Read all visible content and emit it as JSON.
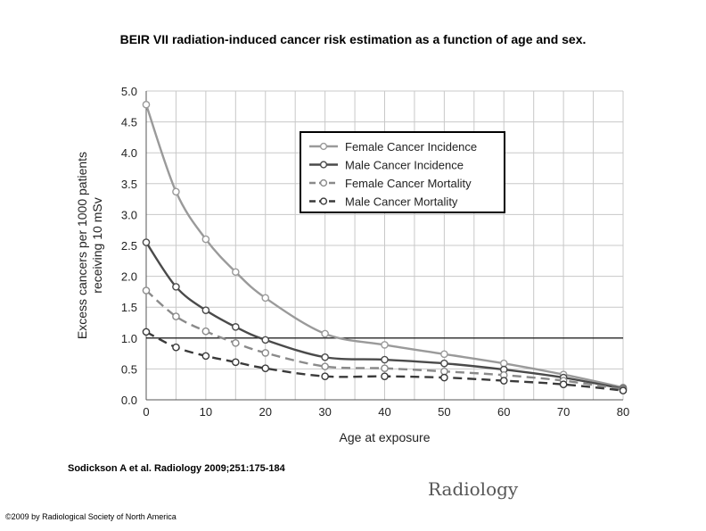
{
  "title": "BEIR VII radiation-induced cancer risk estimation as a function of age and sex.",
  "citation": "Sodickson A et al. Radiology 2009;251:175-184",
  "logo": "Radiology",
  "copyright": "©2009 by Radiological Society of North America",
  "chart_data": {
    "type": "line",
    "xlabel": "Age at exposure",
    "ylabel_lines": [
      "Excess cancers per 1000 patients",
      "receiving 10 mSv"
    ],
    "x_ticks": [
      0,
      10,
      20,
      30,
      40,
      50,
      60,
      70,
      80
    ],
    "y_ticks": [
      "0.0",
      "0.5",
      "1.0",
      "1.5",
      "2.0",
      "2.5",
      "3.0",
      "3.5",
      "4.0",
      "4.5",
      "5.0"
    ],
    "xlim": [
      0,
      80
    ],
    "ylim": [
      0,
      5
    ],
    "grid": true,
    "legend_position": "top-right",
    "reference_line_y": 1.0,
    "series": [
      {
        "name": "Female Cancer Incidence",
        "style": "solid",
        "color": "#9a9a9a",
        "x": [
          0,
          5,
          10,
          15,
          20,
          30,
          40,
          50,
          60,
          70,
          80
        ],
        "y": [
          4.78,
          3.37,
          2.6,
          2.07,
          1.65,
          1.07,
          0.89,
          0.74,
          0.59,
          0.41,
          0.2
        ]
      },
      {
        "name": "Male Cancer Incidence",
        "style": "solid",
        "color": "#4a4a4a",
        "x": [
          0,
          5,
          10,
          15,
          20,
          30,
          40,
          50,
          60,
          70,
          80
        ],
        "y": [
          2.55,
          1.83,
          1.45,
          1.18,
          0.97,
          0.69,
          0.65,
          0.59,
          0.49,
          0.36,
          0.18
        ]
      },
      {
        "name": "Female Cancer Mortality",
        "style": "dashed",
        "color": "#8a8a8a",
        "x": [
          0,
          5,
          10,
          15,
          20,
          30,
          40,
          50,
          60,
          70,
          80
        ],
        "y": [
          1.77,
          1.35,
          1.11,
          0.92,
          0.76,
          0.54,
          0.51,
          0.46,
          0.4,
          0.31,
          0.17
        ]
      },
      {
        "name": "Male Cancer Mortality",
        "style": "dashed",
        "color": "#3a3a3a",
        "x": [
          0,
          5,
          10,
          15,
          20,
          30,
          40,
          50,
          60,
          70,
          80
        ],
        "y": [
          1.1,
          0.85,
          0.71,
          0.61,
          0.51,
          0.38,
          0.38,
          0.36,
          0.31,
          0.25,
          0.15
        ]
      }
    ]
  }
}
